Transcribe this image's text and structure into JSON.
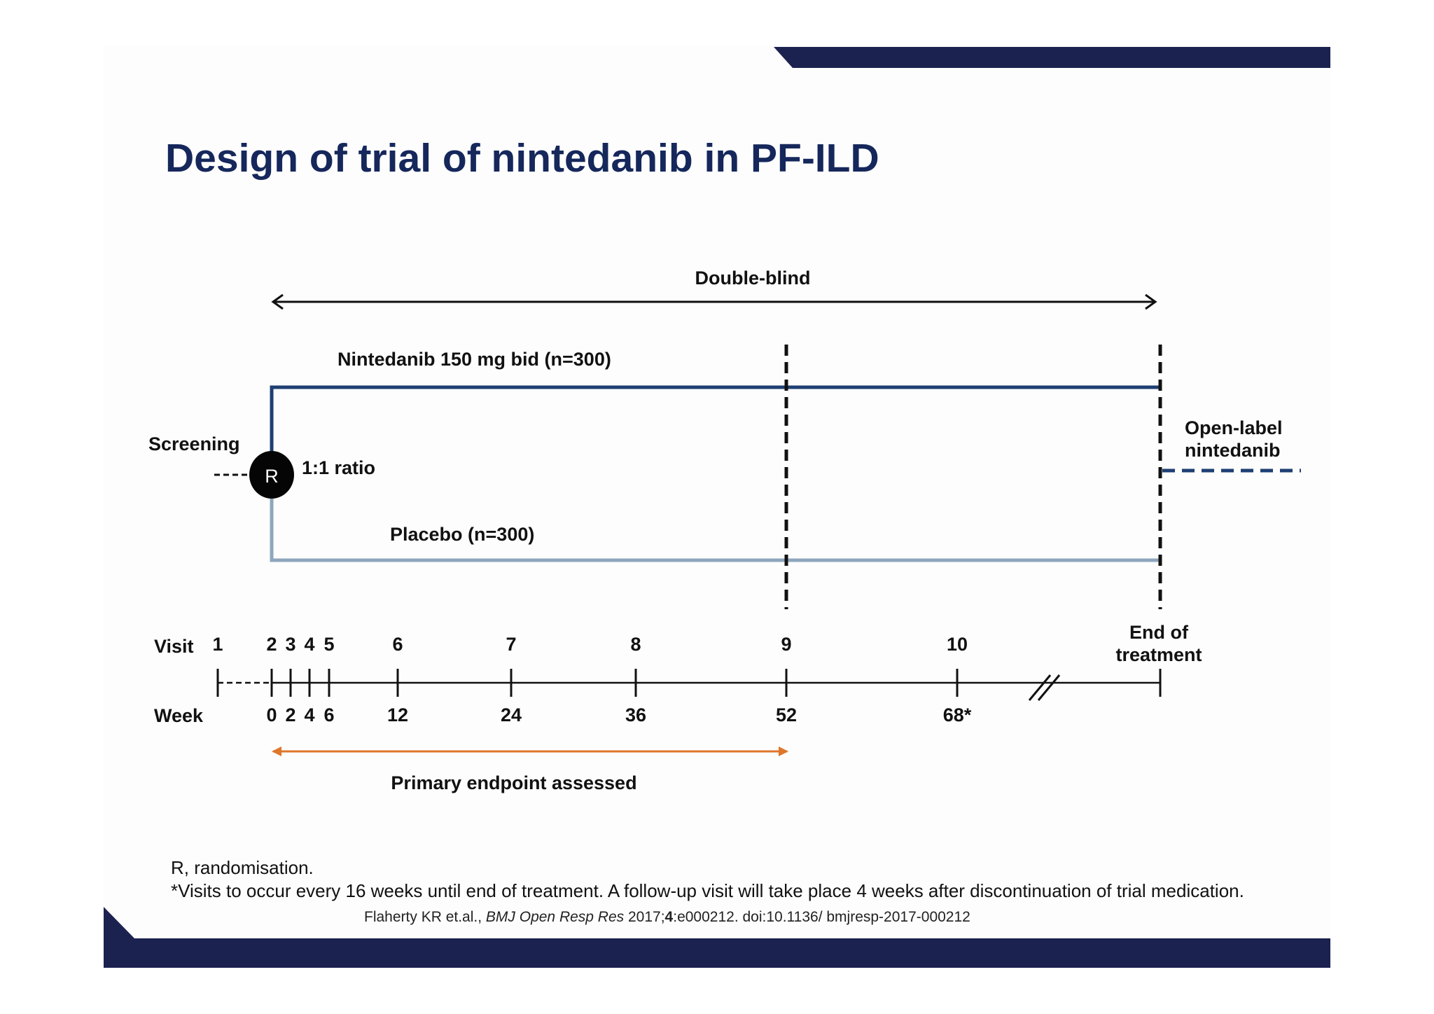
{
  "title": "Design of trial of nintedanib in PF-ILD",
  "diagram": {
    "double_blind": "Double-blind",
    "nintedanib_arm": "Nintedanib 150 mg bid (n=300)",
    "placebo_arm": "Placebo (n=300)",
    "screening": "Screening",
    "randomisation_node": "R",
    "ratio": "1:1 ratio",
    "open_label_line1": "Open-label",
    "open_label_line2": "nintedanib",
    "visit_label": "Visit",
    "week_label": "Week",
    "end_line1": "End of",
    "end_line2": "treatment",
    "primary_endpoint": "Primary endpoint assessed",
    "timeline": [
      {
        "visit": "1",
        "week": ""
      },
      {
        "visit": "2",
        "week": "0"
      },
      {
        "visit": "3",
        "week": "2"
      },
      {
        "visit": "4",
        "week": "4"
      },
      {
        "visit": "5",
        "week": "6"
      },
      {
        "visit": "6",
        "week": "12"
      },
      {
        "visit": "7",
        "week": "24"
      },
      {
        "visit": "8",
        "week": "36"
      },
      {
        "visit": "9",
        "week": "52"
      },
      {
        "visit": "10",
        "week": "68*"
      }
    ]
  },
  "footnotes": {
    "line1": "R, randomisation.",
    "line2": "*Visits to occur every 16 weeks until end of treatment. A follow-up visit will take place 4 weeks after discontinuation of trial medication."
  },
  "citation": {
    "authors": "Flaherty KR et.al., ",
    "journal": "BMJ Open Resp Res",
    "year": " 2017;",
    "volume": "4",
    "rest": ":e000212. doi:10.1136/ bmjresp-2017-000212"
  },
  "colors": {
    "brand_navy": "#1b2250",
    "title_color": "#15275b",
    "nintedanib_line": "#1e3f73",
    "placebo_line": "#8ea6bd",
    "endpoint_arrow": "#e0762a"
  }
}
